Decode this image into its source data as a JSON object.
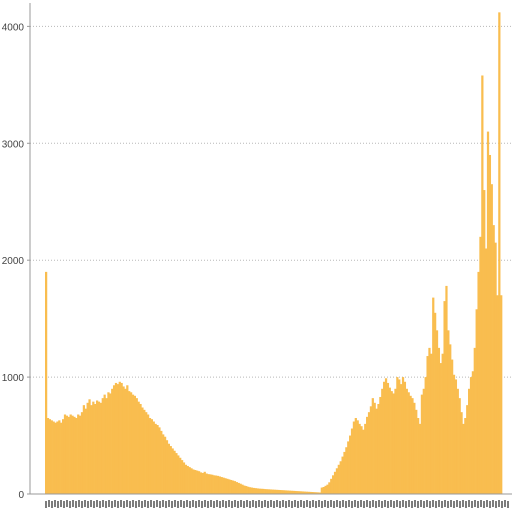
{
  "chart_data": {
    "type": "bar",
    "title": "",
    "xlabel": "",
    "ylabel": "",
    "ylim": [
      0,
      4200
    ],
    "yticks": [
      0,
      1000,
      2000,
      3000,
      4000
    ],
    "grid": "horizontal dotted",
    "bar_color": "#f9bd4f",
    "values": [
      1900,
      650,
      640,
      630,
      620,
      610,
      620,
      630,
      610,
      640,
      680,
      670,
      660,
      680,
      670,
      660,
      650,
      680,
      670,
      700,
      760,
      730,
      780,
      810,
      760,
      790,
      770,
      800,
      790,
      780,
      820,
      850,
      820,
      870,
      860,
      900,
      930,
      950,
      940,
      960,
      950,
      920,
      900,
      930,
      880,
      870,
      850,
      840,
      820,
      790,
      770,
      740,
      720,
      700,
      680,
      650,
      640,
      620,
      600,
      590,
      570,
      540,
      510,
      490,
      460,
      430,
      410,
      390,
      370,
      350,
      330,
      310,
      290,
      270,
      250,
      240,
      230,
      220,
      210,
      205,
      200,
      195,
      185,
      180,
      190,
      175,
      170,
      168,
      165,
      160,
      158,
      155,
      150,
      145,
      140,
      135,
      130,
      125,
      120,
      115,
      110,
      102,
      95,
      88,
      80,
      72,
      68,
      62,
      58,
      55,
      52,
      50,
      48,
      46,
      45,
      44,
      42,
      41,
      40,
      39,
      38,
      37,
      36,
      35,
      34,
      33,
      32,
      31,
      30,
      29,
      28,
      27,
      26,
      25,
      24,
      23,
      22,
      21,
      20,
      19,
      18,
      17,
      16,
      15,
      14,
      13,
      55,
      60,
      70,
      80,
      100,
      130,
      160,
      190,
      220,
      250,
      280,
      320,
      360,
      400,
      450,
      500,
      560,
      620,
      650,
      630,
      600,
      580,
      550,
      600,
      660,
      700,
      750,
      820,
      780,
      730,
      770,
      830,
      900,
      960,
      990,
      950,
      910,
      880,
      860,
      900,
      1000,
      980,
      940,
      1000,
      960,
      900,
      870,
      840,
      820,
      780,
      720,
      650,
      600,
      850,
      900,
      1000,
      1180,
      1250,
      1200,
      1680,
      1550,
      1400,
      1250,
      1120,
      1200,
      1650,
      1780,
      1400,
      1280,
      1150,
      1020,
      980,
      900,
      820,
      700,
      600,
      650,
      760,
      900,
      1000,
      1050,
      1250,
      1580,
      1900,
      2200,
      3580,
      2600,
      2100,
      3100,
      2900,
      2650,
      2300,
      2150,
      1700,
      4120,
      1700
    ]
  }
}
